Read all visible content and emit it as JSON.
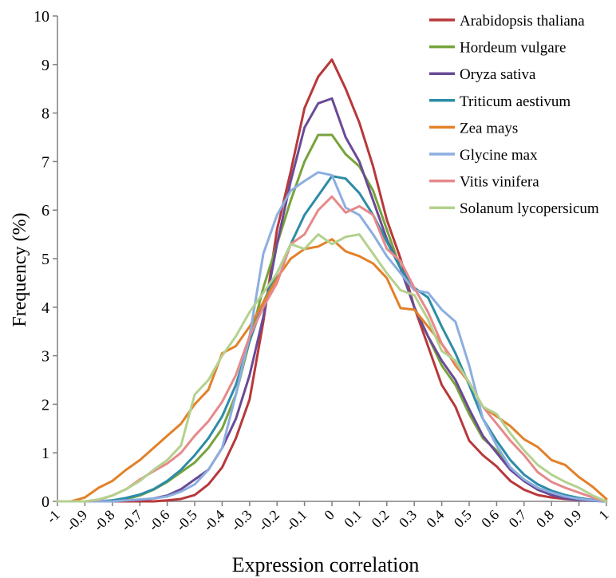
{
  "chart_data": {
    "type": "line",
    "xlabel": "Expression correlation",
    "ylabel": "Frequency (%)",
    "xlim": [
      -1,
      1
    ],
    "ylim": [
      0,
      10
    ],
    "grid": false,
    "legend_position": "top-right",
    "x_ticks": [
      "-1",
      "-0.9",
      "-0.8",
      "-0.7",
      "-0.6",
      "-0.5",
      "-0.4",
      "-0.3",
      "-0.2",
      "-0.1",
      "0",
      "0.1",
      "0.2",
      "0.3",
      "0.4",
      "0.5",
      "0.6",
      "0.7",
      "0.8",
      "0.9",
      "1"
    ],
    "y_ticks": [
      "0",
      "1",
      "2",
      "3",
      "4",
      "5",
      "6",
      "7",
      "8",
      "9",
      "10"
    ],
    "x": [
      -1,
      -0.95,
      -0.9,
      -0.85,
      -0.8,
      -0.75,
      -0.7,
      -0.65,
      -0.6,
      -0.55,
      -0.5,
      -0.45,
      -0.4,
      -0.35,
      -0.3,
      -0.25,
      -0.2,
      -0.15,
      -0.1,
      -0.05,
      0,
      0.05,
      0.1,
      0.15,
      0.2,
      0.25,
      0.3,
      0.35,
      0.4,
      0.45,
      0.5,
      0.55,
      0.6,
      0.65,
      0.7,
      0.75,
      0.8,
      0.85,
      0.9,
      0.95,
      1
    ],
    "series": [
      {
        "name": "Arabidopsis thaliana",
        "color": "#b8383a",
        "values": [
          0,
          0,
          0,
          0,
          0,
          0,
          0,
          0,
          0.02,
          0.05,
          0.13,
          0.35,
          0.7,
          1.3,
          2.1,
          3.7,
          5.6,
          6.8,
          8.1,
          8.75,
          9.1,
          8.5,
          7.8,
          6.9,
          5.8,
          5.0,
          4.0,
          3.2,
          2.4,
          1.95,
          1.25,
          0.95,
          0.72,
          0.42,
          0.24,
          0.13,
          0.08,
          0.05,
          0.03,
          0.02,
          0
        ]
      },
      {
        "name": "Hordeum vulgare",
        "color": "#77a33c",
        "values": [
          0,
          0,
          0,
          0,
          0.02,
          0.05,
          0.12,
          0.24,
          0.4,
          0.6,
          0.8,
          1.1,
          1.5,
          2.2,
          3.3,
          4.4,
          5.3,
          6.2,
          7.0,
          7.55,
          7.55,
          7.15,
          6.9,
          6.4,
          5.6,
          4.8,
          4.0,
          3.4,
          2.8,
          2.4,
          1.8,
          1.3,
          1.05,
          0.68,
          0.42,
          0.24,
          0.14,
          0.08,
          0.04,
          0.02,
          0
        ]
      },
      {
        "name": "Oryza sativa",
        "color": "#6a4a96",
        "values": [
          0,
          0,
          0,
          0,
          0,
          0.02,
          0.03,
          0.06,
          0.12,
          0.25,
          0.45,
          0.65,
          1.1,
          1.7,
          2.6,
          3.8,
          5.3,
          6.6,
          7.7,
          8.2,
          8.3,
          7.5,
          7.0,
          6.2,
          5.4,
          4.8,
          4.0,
          3.4,
          2.9,
          2.5,
          1.9,
          1.35,
          1.0,
          0.65,
          0.42,
          0.24,
          0.13,
          0.06,
          0.03,
          0.01,
          0
        ]
      },
      {
        "name": "Triticum aestivum",
        "color": "#2d8ca6",
        "values": [
          0,
          0,
          0,
          0,
          0.02,
          0.07,
          0.14,
          0.25,
          0.42,
          0.65,
          0.95,
          1.3,
          1.75,
          2.4,
          3.3,
          4.1,
          4.7,
          5.3,
          5.9,
          6.3,
          6.7,
          6.65,
          6.35,
          5.9,
          5.35,
          4.8,
          4.4,
          4.2,
          3.6,
          3.05,
          2.4,
          1.7,
          1.25,
          0.85,
          0.55,
          0.35,
          0.22,
          0.13,
          0.07,
          0.03,
          0
        ]
      },
      {
        "name": "Zea mays",
        "color": "#e2812a",
        "values": [
          0,
          0,
          0.08,
          0.28,
          0.42,
          0.65,
          0.85,
          1.1,
          1.35,
          1.6,
          2.0,
          2.3,
          3.05,
          3.2,
          3.6,
          4.1,
          4.6,
          5.0,
          5.2,
          5.25,
          5.4,
          5.15,
          5.05,
          4.9,
          4.6,
          3.98,
          3.95,
          3.6,
          3.25,
          2.8,
          2.45,
          1.95,
          1.75,
          1.55,
          1.28,
          1.12,
          0.85,
          0.75,
          0.5,
          0.3,
          0.05
        ]
      },
      {
        "name": "Glycine max",
        "color": "#8caee0",
        "values": [
          0,
          0,
          0,
          0,
          0,
          0.02,
          0.04,
          0.06,
          0.1,
          0.2,
          0.35,
          0.65,
          1.1,
          2.2,
          3.4,
          5.1,
          5.9,
          6.4,
          6.6,
          6.78,
          6.72,
          6.05,
          5.9,
          5.5,
          5.05,
          4.7,
          4.35,
          4.3,
          3.95,
          3.7,
          2.8,
          1.7,
          1.15,
          0.7,
          0.45,
          0.28,
          0.18,
          0.1,
          0.05,
          0.02,
          0
        ]
      },
      {
        "name": "Vitis vinifera",
        "color": "#e6898b",
        "values": [
          0,
          0,
          0,
          0.03,
          0.12,
          0.25,
          0.45,
          0.62,
          0.78,
          1.0,
          1.35,
          1.65,
          2.05,
          2.6,
          3.4,
          4.0,
          4.5,
          5.3,
          5.5,
          6.0,
          6.28,
          5.95,
          6.08,
          5.9,
          5.2,
          4.95,
          4.4,
          3.9,
          3.25,
          2.85,
          2.45,
          1.95,
          1.6,
          1.25,
          0.95,
          0.6,
          0.4,
          0.28,
          0.18,
          0.08,
          0
        ]
      },
      {
        "name": "Solanum lycopersicum",
        "color": "#b4d18f",
        "values": [
          0,
          0,
          0,
          0.04,
          0.12,
          0.25,
          0.42,
          0.65,
          0.85,
          1.15,
          2.2,
          2.5,
          3.0,
          3.4,
          3.9,
          4.3,
          4.7,
          5.3,
          5.2,
          5.5,
          5.3,
          5.45,
          5.5,
          5.1,
          4.7,
          4.35,
          4.25,
          3.75,
          3.1,
          2.9,
          2.45,
          1.95,
          1.8,
          1.4,
          1.05,
          0.75,
          0.55,
          0.4,
          0.28,
          0.12,
          0
        ]
      }
    ]
  }
}
